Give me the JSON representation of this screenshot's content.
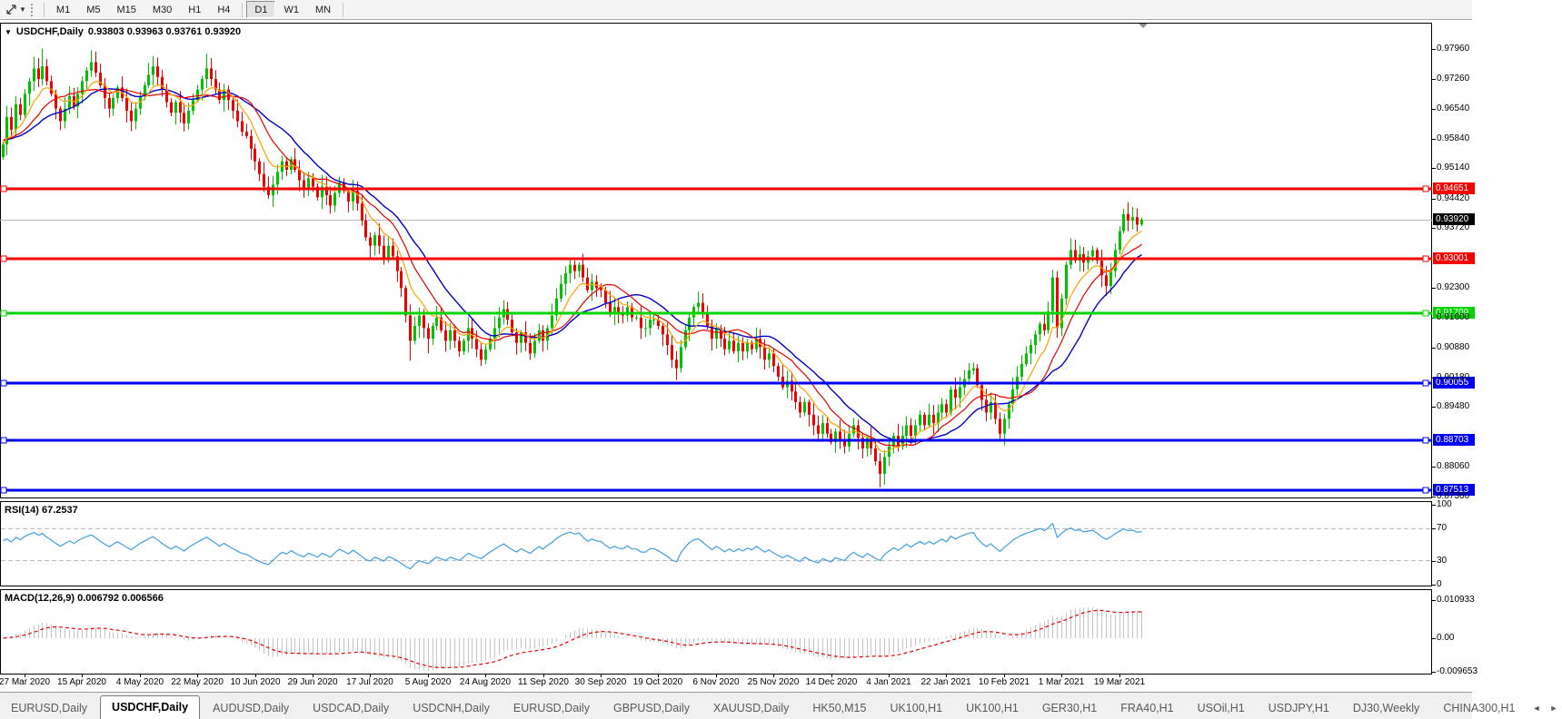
{
  "window": {
    "toolbar": {
      "icons": [
        {
          "name": "chart-tools-icon",
          "glyph": "diagonal-double-arrow"
        },
        {
          "name": "dropdown-caret-icon",
          "glyph": "▾"
        }
      ],
      "timeframes": [
        "M1",
        "M5",
        "M15",
        "M30",
        "H1",
        "H4",
        "D1",
        "W1",
        "MN"
      ],
      "active_timeframe": "D1"
    },
    "chart_header": {
      "collapse_icon": "▼",
      "symbol_label": "USDCHF,Daily",
      "ohlc": "0.93803 0.93963 0.93761 0.93920"
    },
    "tabs": {
      "items": [
        {
          "label": "EURUSD,Daily",
          "active": false
        },
        {
          "label": "USDCHF,Daily",
          "active": true
        },
        {
          "label": "AUDUSD,Daily",
          "active": false
        },
        {
          "label": "USDCAD,Daily",
          "active": false
        },
        {
          "label": "USDCNH,Daily",
          "active": false
        },
        {
          "label": "EURUSD,Daily",
          "active": false
        },
        {
          "label": "GBPUSD,Daily",
          "active": false
        },
        {
          "label": "XAUUSD,Daily",
          "active": false
        },
        {
          "label": "HK50,M15",
          "active": false
        },
        {
          "label": "UK100,H1",
          "active": false
        },
        {
          "label": "UK100,H1",
          "active": false
        },
        {
          "label": "GER30,H1",
          "active": false
        },
        {
          "label": "FRA40,H1",
          "active": false
        },
        {
          "label": "USOil,H1",
          "active": false
        },
        {
          "label": "USDJPY,H1",
          "active": false
        },
        {
          "label": "DJ30,Weekly",
          "active": false
        },
        {
          "label": "CHINA300,H1",
          "active": false
        }
      ],
      "scroll_left": "◄",
      "scroll_right": "►"
    }
  },
  "chart_data": {
    "type": "candlestick",
    "symbol": "USDCHF",
    "timeframe": "Daily",
    "last_bar": {
      "open": 0.93803,
      "high": 0.93963,
      "low": 0.93761,
      "close": 0.9392
    },
    "current_price_label": "0.93920",
    "current_price": 0.9392,
    "price_axis_ticks": [
      "0.97960",
      "0.97260",
      "0.96540",
      "0.95840",
      "0.95140",
      "0.94420",
      "0.93720",
      "0.92300",
      "0.91600",
      "0.90880",
      "0.90180",
      "0.89480",
      "0.88060",
      "0.87360"
    ],
    "horizontal_lines": [
      {
        "label": "0.94651",
        "price": 0.94651,
        "color": "#f60000"
      },
      {
        "label": "0.93001",
        "price": 0.93001,
        "color": "#f60000"
      },
      {
        "label": "0.91709",
        "price": 0.91709,
        "color": "#00d300"
      },
      {
        "label": "0.90055",
        "price": 0.90055,
        "color": "#0000f0"
      },
      {
        "label": "0.88703",
        "price": 0.88703,
        "color": "#0000f0"
      },
      {
        "label": "0.87513",
        "price": 0.87513,
        "color": "#0000f0"
      }
    ],
    "date_labels": [
      "27 Mar 2020",
      "15 Apr 2020",
      "4 May 2020",
      "22 May 2020",
      "10 Jun 2020",
      "29 Jun 2020",
      "17 Jul 2020",
      "5 Aug 2020",
      "24 Aug 2020",
      "11 Sep 2020",
      "30 Sep 2020",
      "19 Oct 2020",
      "6 Nov 2020",
      "25 Nov 2020",
      "14 Dec 2020",
      "4 Jan 2021",
      "22 Jan 2021",
      "10 Feb 2021",
      "1 Mar 2021",
      "19 Mar 2021"
    ],
    "candles": {
      "up_color": "#00c300",
      "down_color": "#f20000",
      "closes": [
        0.957,
        0.9635,
        0.9605,
        0.9665,
        0.964,
        0.969,
        0.972,
        0.975,
        0.9725,
        0.9755,
        0.972,
        0.969,
        0.9655,
        0.9625,
        0.9655,
        0.9685,
        0.966,
        0.969,
        0.972,
        0.9745,
        0.9765,
        0.974,
        0.971,
        0.968,
        0.9655,
        0.968,
        0.9705,
        0.968,
        0.965,
        0.9625,
        0.9655,
        0.9685,
        0.971,
        0.9735,
        0.9755,
        0.973,
        0.97,
        0.967,
        0.9645,
        0.967,
        0.9645,
        0.962,
        0.965,
        0.9675,
        0.97,
        0.9725,
        0.975,
        0.9725,
        0.97,
        0.9675,
        0.97,
        0.9675,
        0.965,
        0.9625,
        0.96,
        0.959,
        0.956,
        0.953,
        0.95,
        0.947,
        0.945,
        0.9475,
        0.9505,
        0.953,
        0.951,
        0.9535,
        0.951,
        0.9485,
        0.9465,
        0.949,
        0.947,
        0.9445,
        0.947,
        0.945,
        0.9425,
        0.9455,
        0.948,
        0.946,
        0.9435,
        0.946,
        0.943,
        0.939,
        0.935,
        0.933,
        0.9355,
        0.933,
        0.93,
        0.933,
        0.9305,
        0.927,
        0.923,
        0.9165,
        0.9105,
        0.914,
        0.9165,
        0.9135,
        0.911,
        0.914,
        0.916,
        0.913,
        0.9105,
        0.913,
        0.9105,
        0.908,
        0.9105,
        0.9135,
        0.911,
        0.9085,
        0.906,
        0.9085,
        0.911,
        0.9135,
        0.916,
        0.918,
        0.9155,
        0.9125,
        0.91,
        0.9125,
        0.91,
        0.9075,
        0.9105,
        0.913,
        0.9105,
        0.9135,
        0.9165,
        0.9205,
        0.924,
        0.9265,
        0.9285,
        0.927,
        0.9285,
        0.9255,
        0.9225,
        0.9245,
        0.923,
        0.9225,
        0.9195,
        0.917,
        0.9185,
        0.917,
        0.9165,
        0.9185,
        0.916,
        0.916,
        0.9135,
        0.9135,
        0.9155,
        0.9155,
        0.914,
        0.912,
        0.9095,
        0.906,
        0.904,
        0.909,
        0.913,
        0.916,
        0.9185,
        0.9195,
        0.917,
        0.914,
        0.911,
        0.9135,
        0.911,
        0.9085,
        0.9105,
        0.908,
        0.91,
        0.908,
        0.91,
        0.9085,
        0.911,
        0.909,
        0.906,
        0.9075,
        0.9045,
        0.902,
        0.8995,
        0.901,
        0.8985,
        0.896,
        0.8935,
        0.896,
        0.893,
        0.8905,
        0.8885,
        0.891,
        0.8885,
        0.8865,
        0.889,
        0.887,
        0.8855,
        0.8885,
        0.8905,
        0.8875,
        0.885,
        0.8875,
        0.885,
        0.882,
        0.879,
        0.883,
        0.8855,
        0.888,
        0.8855,
        0.888,
        0.8905,
        0.888,
        0.8905,
        0.893,
        0.8905,
        0.893,
        0.891,
        0.8935,
        0.8955,
        0.8935,
        0.899,
        0.897,
        0.8995,
        0.9015,
        0.9035,
        0.904,
        0.9,
        0.8965,
        0.8935,
        0.896,
        0.892,
        0.8885,
        0.892,
        0.8955,
        0.899,
        0.902,
        0.905,
        0.9075,
        0.9095,
        0.912,
        0.9145,
        0.913,
        0.9175,
        0.9255,
        0.9135,
        0.9205,
        0.9285,
        0.932,
        0.9295,
        0.931,
        0.929,
        0.9305,
        0.932,
        0.9295,
        0.926,
        0.9235,
        0.927,
        0.932,
        0.9365,
        0.9405,
        0.939,
        0.9398,
        0.938,
        0.9392
      ],
      "wick_extremes": {
        "9": {
          "h": 0.9797
        },
        "20": {
          "h": 0.979
        },
        "34": {
          "h": 0.9775
        },
        "46": {
          "h": 0.9785
        },
        "60": {
          "l": 0.9443
        },
        "74": {
          "l": 0.9412
        },
        "92": {
          "l": 0.9058
        },
        "96": {
          "l": 0.9075
        },
        "108": {
          "l": 0.9052
        },
        "113": {
          "h": 0.9196
        },
        "128": {
          "h": 0.9296
        },
        "152": {
          "l": 0.9012
        },
        "157": {
          "h": 0.9199
        },
        "198": {
          "l": 0.8758
        },
        "219": {
          "h": 0.9046
        },
        "225": {
          "l": 0.8871
        },
        "249": {
          "l": 0.9218
        },
        "253": {
          "h": 0.9418
        }
      }
    },
    "moving_averages": [
      {
        "name": "fast",
        "color": "#ffa200"
      },
      {
        "name": "medium",
        "color": "#e60000"
      },
      {
        "name": "slow",
        "color": "#0000c8"
      }
    ],
    "rsi": {
      "label": "RSI(14) 67.2537",
      "period": 14,
      "current": 67.2537,
      "color": "#3f9fe0",
      "levels": [
        70,
        30
      ],
      "scale": [
        [
          "100",
          100
        ],
        [
          "70",
          70
        ],
        [
          "30",
          30
        ],
        [
          "0",
          0
        ]
      ]
    },
    "macd": {
      "label": "MACD(12,26,9) 0.006792 0.006566",
      "values": [
        0.006792,
        0.006566
      ],
      "bar_color": "#c4c4c4",
      "signal_color": "#e60000",
      "scale_max": 0.010933,
      "scale_min": -0.009653,
      "scale": [
        [
          "0.010933",
          0.010933
        ],
        [
          "0.00",
          0
        ],
        [
          "-0.009653",
          -0.009653
        ]
      ]
    }
  }
}
